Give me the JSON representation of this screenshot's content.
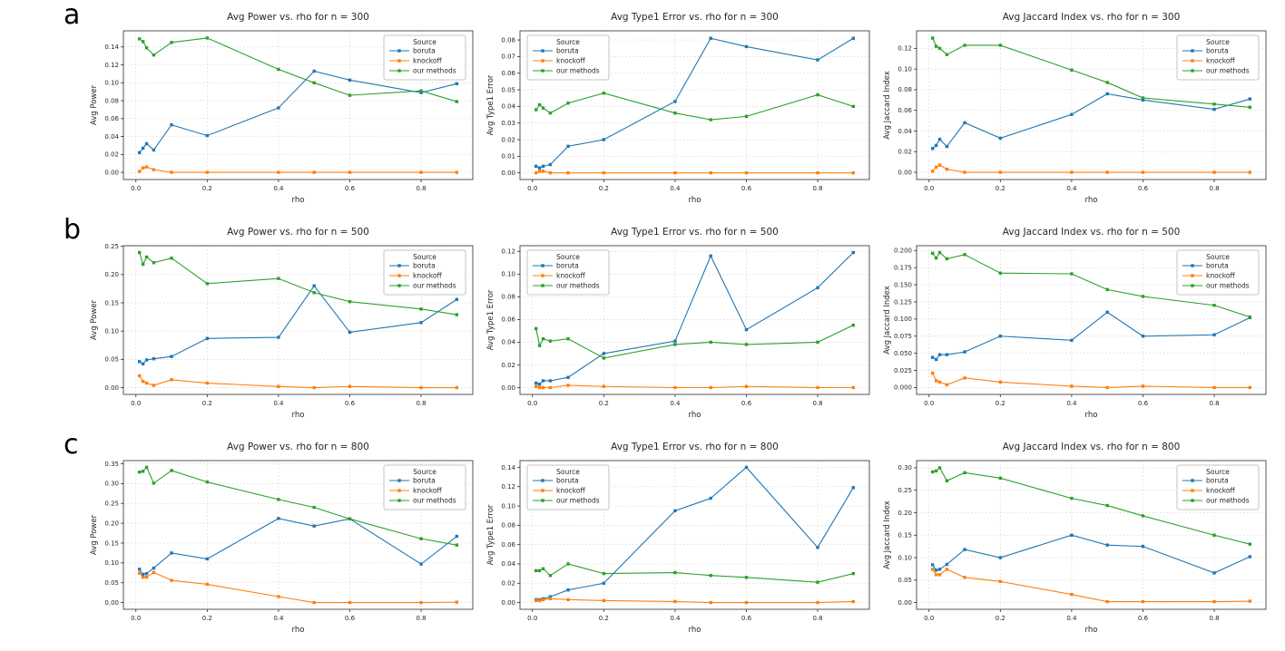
{
  "figure": {
    "rows": [
      {
        "label": "a",
        "n": "300"
      },
      {
        "label": "b",
        "n": "500"
      },
      {
        "label": "c",
        "c": "c",
        "n": "800"
      }
    ]
  },
  "legend": {
    "title": "Source",
    "entries": [
      {
        "label": "boruta",
        "color": "#1f77b4"
      },
      {
        "label": "knockoff",
        "color": "#ff7f0e"
      },
      {
        "label": "our methods",
        "color": "#2ca02c"
      }
    ]
  },
  "colors": {
    "boruta": "#1f77b4",
    "knockoff": "#ff7f0e",
    "our_methods": "#2ca02c",
    "grid": "#d3d3d3",
    "spine": "#2b2b2b",
    "text": "#262626"
  },
  "chart_data": [
    {
      "type": "line",
      "title": "Avg Power vs. rho for n = 300",
      "xlabel": "rho",
      "ylabel": "Avg Power",
      "x": [
        0.01,
        0.02,
        0.03,
        0.05,
        0.1,
        0.2,
        0.4,
        0.5,
        0.6,
        0.8,
        0.9
      ],
      "series": [
        {
          "name": "boruta",
          "values": [
            0.022,
            0.027,
            0.032,
            0.025,
            0.053,
            0.041,
            0.072,
            0.113,
            0.103,
            0.089,
            0.099
          ]
        },
        {
          "name": "knockoff",
          "values": [
            0.001,
            0.005,
            0.006,
            0.003,
            0.0,
            0.0,
            0.0,
            0.0,
            0.0,
            0.0,
            0.0
          ]
        },
        {
          "name": "our methods",
          "values": [
            0.149,
            0.146,
            0.139,
            0.131,
            0.145,
            0.15,
            0.115,
            0.1,
            0.086,
            0.091,
            0.079
          ]
        }
      ],
      "xlim": [
        -0.035,
        0.945
      ],
      "ylim": [
        -0.008,
        0.158
      ],
      "xticks": [
        0.0,
        0.2,
        0.4,
        0.6,
        0.8
      ],
      "yticks": [
        0.0,
        0.02,
        0.04,
        0.06,
        0.08,
        0.1,
        0.12,
        0.14
      ],
      "ydecimals": 2,
      "grid": true,
      "legend_pos": "upper right"
    },
    {
      "type": "line",
      "title": "Avg Type1 Error vs. rho for n = 300",
      "xlabel": "rho",
      "ylabel": "Avg Type1 Error",
      "x": [
        0.01,
        0.02,
        0.03,
        0.05,
        0.1,
        0.2,
        0.4,
        0.5,
        0.6,
        0.8,
        0.9
      ],
      "series": [
        {
          "name": "boruta",
          "values": [
            0.004,
            0.003,
            0.004,
            0.005,
            0.016,
            0.02,
            0.043,
            0.081,
            0.076,
            0.068,
            0.081
          ]
        },
        {
          "name": "knockoff",
          "values": [
            0.0,
            0.001,
            0.001,
            0.0,
            0.0,
            0.0,
            0.0,
            0.0,
            0.0,
            0.0,
            0.0
          ]
        },
        {
          "name": "our methods",
          "values": [
            0.038,
            0.041,
            0.039,
            0.036,
            0.042,
            0.048,
            0.036,
            0.032,
            0.034,
            0.047,
            0.04
          ]
        }
      ],
      "xlim": [
        -0.035,
        0.945
      ],
      "ylim": [
        -0.004,
        0.0855
      ],
      "xticks": [
        0.0,
        0.2,
        0.4,
        0.6,
        0.8
      ],
      "yticks": [
        0.0,
        0.01,
        0.02,
        0.03,
        0.04,
        0.05,
        0.06,
        0.07,
        0.08
      ],
      "ydecimals": 2,
      "grid": true,
      "legend_pos": "upper left"
    },
    {
      "type": "line",
      "title": "Avg Jaccard Index vs. rho for n = 300",
      "xlabel": "rho",
      "ylabel": "Avg Jaccard Index",
      "x": [
        0.01,
        0.02,
        0.03,
        0.05,
        0.1,
        0.2,
        0.4,
        0.5,
        0.6,
        0.8,
        0.9
      ],
      "series": [
        {
          "name": "boruta",
          "values": [
            0.023,
            0.026,
            0.032,
            0.025,
            0.048,
            0.033,
            0.056,
            0.076,
            0.07,
            0.061,
            0.071
          ]
        },
        {
          "name": "knockoff",
          "values": [
            0.001,
            0.005,
            0.007,
            0.003,
            0.0,
            0.0,
            0.0,
            0.0,
            0.0,
            0.0,
            0.0
          ]
        },
        {
          "name": "our methods",
          "values": [
            0.13,
            0.122,
            0.12,
            0.114,
            0.123,
            0.123,
            0.099,
            0.087,
            0.072,
            0.066,
            0.063
          ]
        }
      ],
      "xlim": [
        -0.035,
        0.945
      ],
      "ylim": [
        -0.007,
        0.137
      ],
      "xticks": [
        0.0,
        0.2,
        0.4,
        0.6,
        0.8
      ],
      "yticks": [
        0.0,
        0.02,
        0.04,
        0.06,
        0.08,
        0.1,
        0.12
      ],
      "ydecimals": 2,
      "grid": true,
      "legend_pos": "upper right"
    },
    {
      "type": "line",
      "title": "Avg Power vs. rho for n = 500",
      "xlabel": "rho",
      "ylabel": "Avg Power",
      "x": [
        0.01,
        0.02,
        0.03,
        0.05,
        0.1,
        0.2,
        0.4,
        0.5,
        0.6,
        0.8,
        0.9
      ],
      "series": [
        {
          "name": "boruta",
          "values": [
            0.046,
            0.042,
            0.049,
            0.051,
            0.055,
            0.087,
            0.089,
            0.18,
            0.098,
            0.115,
            0.156
          ]
        },
        {
          "name": "knockoff",
          "values": [
            0.021,
            0.011,
            0.008,
            0.004,
            0.014,
            0.008,
            0.002,
            0.0,
            0.002,
            0.0,
            0.0
          ]
        },
        {
          "name": "our methods",
          "values": [
            0.239,
            0.218,
            0.231,
            0.221,
            0.229,
            0.184,
            0.193,
            0.168,
            0.152,
            0.139,
            0.129
          ]
        }
      ],
      "xlim": [
        -0.035,
        0.945
      ],
      "ylim": [
        -0.012,
        0.251
      ],
      "xticks": [
        0.0,
        0.2,
        0.4,
        0.6,
        0.8
      ],
      "yticks": [
        0.0,
        0.05,
        0.1,
        0.15,
        0.2,
        0.25
      ],
      "ydecimals": 2,
      "grid": true,
      "legend_pos": "upper right"
    },
    {
      "type": "line",
      "title": "Avg Type1 Error vs. rho for n = 500",
      "xlabel": "rho",
      "ylabel": "Avg Type1 Error",
      "x": [
        0.01,
        0.02,
        0.03,
        0.05,
        0.1,
        0.2,
        0.4,
        0.5,
        0.6,
        0.8,
        0.9
      ],
      "series": [
        {
          "name": "boruta",
          "values": [
            0.004,
            0.003,
            0.006,
            0.006,
            0.009,
            0.03,
            0.041,
            0.116,
            0.051,
            0.088,
            0.119
          ]
        },
        {
          "name": "knockoff",
          "values": [
            0.001,
            0.0,
            0.0,
            0.0,
            0.002,
            0.001,
            0.0,
            0.0,
            0.001,
            0.0,
            0.0
          ]
        },
        {
          "name": "our methods",
          "values": [
            0.052,
            0.037,
            0.043,
            0.041,
            0.043,
            0.026,
            0.038,
            0.04,
            0.038,
            0.04,
            0.055
          ]
        }
      ],
      "xlim": [
        -0.035,
        0.945
      ],
      "ylim": [
        -0.006,
        0.125
      ],
      "xticks": [
        0.0,
        0.2,
        0.4,
        0.6,
        0.8
      ],
      "yticks": [
        0.0,
        0.02,
        0.04,
        0.06,
        0.08,
        0.1,
        0.12
      ],
      "ydecimals": 2,
      "grid": true,
      "legend_pos": "upper left"
    },
    {
      "type": "line",
      "title": "Avg Jaccard Index vs. rho for n = 500",
      "xlabel": "rho",
      "ylabel": "Avg Jaccard Index",
      "x": [
        0.01,
        0.02,
        0.03,
        0.05,
        0.1,
        0.2,
        0.4,
        0.5,
        0.6,
        0.8,
        0.9
      ],
      "series": [
        {
          "name": "boruta",
          "values": [
            0.044,
            0.041,
            0.048,
            0.048,
            0.052,
            0.075,
            0.069,
            0.11,
            0.075,
            0.077,
            0.102
          ]
        },
        {
          "name": "knockoff",
          "values": [
            0.021,
            0.01,
            0.008,
            0.004,
            0.014,
            0.008,
            0.002,
            0.0,
            0.002,
            0.0,
            0.0
          ]
        },
        {
          "name": "our methods",
          "values": [
            0.196,
            0.189,
            0.197,
            0.188,
            0.194,
            0.167,
            0.166,
            0.143,
            0.133,
            0.12,
            0.103
          ]
        }
      ],
      "xlim": [
        -0.035,
        0.945
      ],
      "ylim": [
        -0.01,
        0.207
      ],
      "xticks": [
        0.0,
        0.2,
        0.4,
        0.6,
        0.8
      ],
      "yticks": [
        0.0,
        0.025,
        0.05,
        0.075,
        0.1,
        0.125,
        0.15,
        0.175,
        0.2
      ],
      "ydecimals": 3,
      "grid": true,
      "legend_pos": "upper right"
    },
    {
      "type": "line",
      "title": "Avg Power vs. rho for n = 800",
      "xlabel": "rho",
      "ylabel": "Avg Power",
      "x": [
        0.01,
        0.02,
        0.03,
        0.05,
        0.1,
        0.2,
        0.4,
        0.5,
        0.6,
        0.8,
        0.9
      ],
      "series": [
        {
          "name": "boruta",
          "values": [
            0.084,
            0.071,
            0.073,
            0.087,
            0.125,
            0.11,
            0.212,
            0.193,
            0.211,
            0.097,
            0.167
          ]
        },
        {
          "name": "knockoff",
          "values": [
            0.074,
            0.064,
            0.064,
            0.076,
            0.056,
            0.046,
            0.015,
            0.0,
            0.0,
            0.0,
            0.001
          ]
        },
        {
          "name": "our methods",
          "values": [
            0.329,
            0.331,
            0.341,
            0.301,
            0.333,
            0.304,
            0.26,
            0.24,
            0.211,
            0.161,
            0.145
          ]
        }
      ],
      "xlim": [
        -0.035,
        0.945
      ],
      "ylim": [
        -0.017,
        0.358
      ],
      "xticks": [
        0.0,
        0.2,
        0.4,
        0.6,
        0.8
      ],
      "yticks": [
        0.0,
        0.05,
        0.1,
        0.15,
        0.2,
        0.25,
        0.3,
        0.35
      ],
      "ydecimals": 2,
      "grid": true,
      "legend_pos": "upper right"
    },
    {
      "type": "line",
      "title": "Avg Type1 Error vs. rho for n = 800",
      "xlabel": "rho",
      "ylabel": "Avg Type1 Error",
      "x": [
        0.01,
        0.02,
        0.03,
        0.05,
        0.1,
        0.2,
        0.4,
        0.5,
        0.6,
        0.8,
        0.9
      ],
      "series": [
        {
          "name": "boruta",
          "values": [
            0.003,
            0.003,
            0.004,
            0.006,
            0.013,
            0.02,
            0.095,
            0.108,
            0.14,
            0.057,
            0.119
          ]
        },
        {
          "name": "knockoff",
          "values": [
            0.002,
            0.002,
            0.003,
            0.004,
            0.003,
            0.002,
            0.001,
            0.0,
            0.0,
            0.0,
            0.001
          ]
        },
        {
          "name": "our methods",
          "values": [
            0.033,
            0.033,
            0.035,
            0.028,
            0.04,
            0.03,
            0.031,
            0.028,
            0.026,
            0.021,
            0.03
          ]
        }
      ],
      "xlim": [
        -0.035,
        0.945
      ],
      "ylim": [
        -0.007,
        0.147
      ],
      "xticks": [
        0.0,
        0.2,
        0.4,
        0.6,
        0.8
      ],
      "yticks": [
        0.0,
        0.02,
        0.04,
        0.06,
        0.08,
        0.1,
        0.12,
        0.14
      ],
      "ydecimals": 2,
      "grid": true,
      "legend_pos": "upper left"
    },
    {
      "type": "line",
      "title": "Avg Jaccard Index vs. rho for n = 800",
      "xlabel": "rho",
      "ylabel": "Avg Jaccard Index",
      "x": [
        0.01,
        0.02,
        0.03,
        0.05,
        0.1,
        0.2,
        0.4,
        0.5,
        0.6,
        0.8,
        0.9
      ],
      "series": [
        {
          "name": "boruta",
          "values": [
            0.084,
            0.072,
            0.074,
            0.085,
            0.118,
            0.1,
            0.15,
            0.128,
            0.125,
            0.066,
            0.102
          ]
        },
        {
          "name": "knockoff",
          "values": [
            0.074,
            0.062,
            0.062,
            0.074,
            0.056,
            0.047,
            0.018,
            0.002,
            0.002,
            0.002,
            0.003
          ]
        },
        {
          "name": "our methods",
          "values": [
            0.291,
            0.293,
            0.3,
            0.271,
            0.289,
            0.277,
            0.232,
            0.216,
            0.193,
            0.15,
            0.13
          ]
        }
      ],
      "xlim": [
        -0.035,
        0.945
      ],
      "ylim": [
        -0.015,
        0.316
      ],
      "xticks": [
        0.0,
        0.2,
        0.4,
        0.6,
        0.8
      ],
      "yticks": [
        0.0,
        0.05,
        0.1,
        0.15,
        0.2,
        0.25,
        0.3
      ],
      "ydecimals": 2,
      "grid": true,
      "legend_pos": "upper right"
    }
  ]
}
